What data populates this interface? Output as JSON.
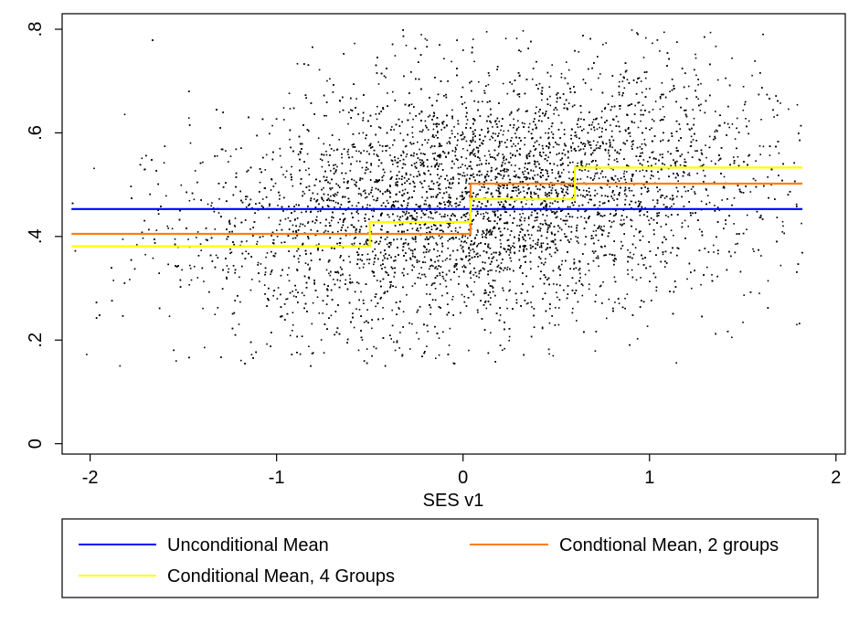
{
  "chart_data": {
    "type": "scatter",
    "xlabel": "SES v1",
    "ylabel": "",
    "xlim": [
      -2.15,
      2.05
    ],
    "ylim": [
      -0.02,
      0.83
    ],
    "x_ticks": [
      -2,
      -1,
      0,
      1,
      2
    ],
    "x_tick_labels": [
      "-2",
      "-1",
      "0",
      "1",
      "2"
    ],
    "y_ticks": [
      0,
      0.2,
      0.4,
      0.6,
      0.8
    ],
    "y_tick_labels": [
      "0",
      ".2",
      ".4",
      ".6",
      ".8"
    ],
    "grid": false,
    "legend_position": "bottom",
    "scatter_series": {
      "name": "",
      "color": "#000000",
      "approx_points": 9000,
      "x_range": [
        -2.1,
        1.82
      ],
      "y_range": [
        0.15,
        0.8
      ],
      "trend_mean_at_x_min": 0.38,
      "trend_mean_at_x_max": 0.54,
      "y_sd": 0.12
    },
    "series": [
      {
        "name": "Unconditional Mean",
        "color": "#0000ff",
        "steps": [
          {
            "x0": -2.1,
            "x1": 1.82,
            "y": 0.453
          }
        ]
      },
      {
        "name": "Condtional Mean, 2 groups",
        "color": "#ff7f0e",
        "steps": [
          {
            "x0": -2.1,
            "x1": 0.04,
            "y": 0.405
          },
          {
            "x0": 0.04,
            "x1": 1.82,
            "y": 0.502
          }
        ]
      },
      {
        "name": "Conditional Mean, 4 Groups",
        "color": "#ffff00",
        "steps": [
          {
            "x0": -2.1,
            "x1": -0.5,
            "y": 0.381
          },
          {
            "x0": -0.5,
            "x1": 0.04,
            "y": 0.428
          },
          {
            "x0": 0.04,
            "x1": 0.6,
            "y": 0.472
          },
          {
            "x0": 0.6,
            "x1": 1.82,
            "y": 0.533
          }
        ]
      }
    ],
    "legend": [
      {
        "label": "Unconditional Mean",
        "color": "#0000ff"
      },
      {
        "label": "Condtional Mean, 2 groups",
        "color": "#ff7f0e"
      },
      {
        "label": "Conditional Mean, 4 Groups",
        "color": "#ffff00"
      }
    ]
  }
}
